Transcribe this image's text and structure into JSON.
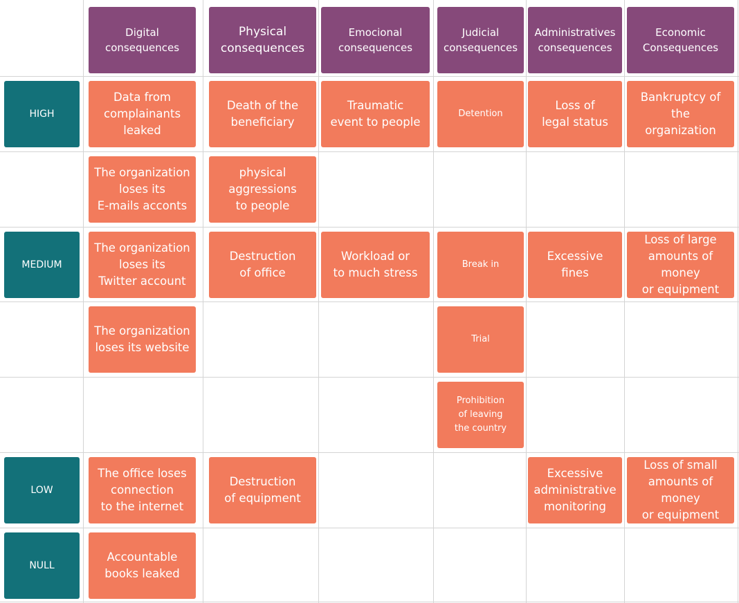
{
  "headers": [
    "Digital\nconsequences",
    "Physical\nconsequences",
    "Emocional\nconsequences",
    "Judicial\nconsequences",
    "Administratives\nconsequences",
    "Economic\nConsequences"
  ],
  "levels": [
    "HIGH",
    "MEDIUM",
    "LOW",
    "NULL"
  ],
  "consequences": {
    "high": {
      "digital": [
        "Data from\ncomplainants\nleaked",
        "The organization\nloses its\nE-mails acconts"
      ],
      "physical": [
        "Death of the\nbeneficiary",
        "physical\naggressions\nto people"
      ],
      "emotional": [
        "Traumatic\nevent to people"
      ],
      "judicial": [
        "Detention"
      ],
      "administrative": [
        "Loss of\nlegal status"
      ],
      "economic": [
        "Bankruptcy of the\norganization"
      ]
    },
    "medium": {
      "digital": [
        "The organization\nloses its\nTwitter account",
        "The organization\nloses its website"
      ],
      "physical": [
        "Destruction\nof office"
      ],
      "emotional": [
        "Workload or\nto much stress"
      ],
      "judicial": [
        "Break in",
        "Trial",
        "Prohibition\nof leaving\nthe country"
      ],
      "administrative": [
        "Excessive\nfines"
      ],
      "economic": [
        "Loss of large\namounts of money\nor equipment"
      ]
    },
    "low": {
      "digital": [
        "The office loses\nconnection\nto the internet"
      ],
      "physical": [
        "Destruction\nof equipment"
      ],
      "administrative": [
        "Excessive\nadministrative\nmonitoring"
      ],
      "economic": [
        "Loss of small\namounts of money\nor equipment"
      ]
    },
    "null": {
      "digital": [
        "Accountable\nbooks leaked"
      ]
    }
  },
  "colors": {
    "header": "#86497a",
    "level": "#137179",
    "consequence": "#f27b5c",
    "grid": "#d4d4d4"
  }
}
